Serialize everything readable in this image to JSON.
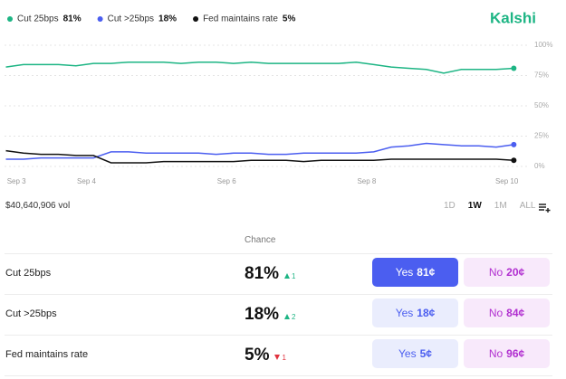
{
  "brand": "Kalshi",
  "chart_data": {
    "type": "line",
    "x": [
      2.85,
      3.1,
      3.35,
      3.6,
      3.85,
      4.1,
      4.35,
      4.6,
      4.85,
      5.1,
      5.35,
      5.6,
      5.85,
      6.1,
      6.35,
      6.6,
      6.85,
      7.1,
      7.35,
      7.6,
      7.85,
      8.1,
      8.35,
      8.6,
      8.85,
      9.1,
      9.35,
      9.6,
      9.85,
      10.1
    ],
    "xlim": [
      2.83,
      10.16
    ],
    "xticks": [
      {
        "value": 3,
        "label": "Sep 3"
      },
      {
        "value": 4,
        "label": "Sep 4"
      },
      {
        "value": 6,
        "label": "Sep 6"
      },
      {
        "value": 8,
        "label": "Sep 8"
      },
      {
        "value": 10,
        "label": "Sep 10"
      }
    ],
    "ylim": [
      0,
      100
    ],
    "yticks": [
      {
        "value": 0,
        "label": "0%"
      },
      {
        "value": 25,
        "label": "25%"
      },
      {
        "value": 50,
        "label": "50%"
      },
      {
        "value": 75,
        "label": "75%"
      },
      {
        "value": 100,
        "label": "100%"
      }
    ],
    "grid": true,
    "series": [
      {
        "name": "Cut 25bps",
        "legend_value": "81%",
        "color": "#1db584",
        "values": [
          82,
          84,
          84,
          84,
          83,
          85,
          85,
          86,
          86,
          86,
          85,
          86,
          86,
          85,
          86,
          85,
          85,
          85,
          85,
          85,
          86,
          84,
          82,
          81,
          80,
          77,
          80,
          80,
          80,
          81
        ]
      },
      {
        "name": "Cut >25bps",
        "legend_value": "18%",
        "color": "#4b5ef0",
        "values": [
          6,
          6,
          7,
          7,
          7,
          7,
          12,
          12,
          11,
          11,
          11,
          11,
          10,
          11,
          11,
          10,
          10,
          11,
          11,
          11,
          11,
          12,
          16,
          17,
          19,
          18,
          17,
          17,
          16,
          18
        ]
      },
      {
        "name": "Fed maintains rate",
        "legend_value": "5%",
        "color": "#111111",
        "values": [
          13,
          11,
          10,
          10,
          9,
          9,
          3,
          3,
          3,
          4,
          4,
          4,
          4,
          4,
          5,
          5,
          5,
          4,
          5,
          5,
          5,
          5,
          6,
          6,
          6,
          6,
          6,
          6,
          6,
          5
        ]
      }
    ]
  },
  "volume": "$40,640,906 vol",
  "ranges": [
    "1D",
    "1W",
    "1M",
    "ALL"
  ],
  "active_range": 1,
  "table": {
    "chance_header": "Chance",
    "rows": [
      {
        "name": "Cut 25bps",
        "chance": "81%",
        "change": "1",
        "direction": "up",
        "yes_label": "Yes",
        "yes_price": "81¢",
        "no_label": "No",
        "no_price": "20¢",
        "selected": true
      },
      {
        "name": "Cut >25bps",
        "chance": "18%",
        "change": "2",
        "direction": "up",
        "yes_label": "Yes",
        "yes_price": "18¢",
        "no_label": "No",
        "no_price": "84¢",
        "selected": false
      },
      {
        "name": "Fed maintains rate",
        "chance": "5%",
        "change": "1",
        "direction": "down",
        "yes_label": "Yes",
        "yes_price": "5¢",
        "no_label": "No",
        "no_price": "96¢",
        "selected": false
      }
    ]
  }
}
